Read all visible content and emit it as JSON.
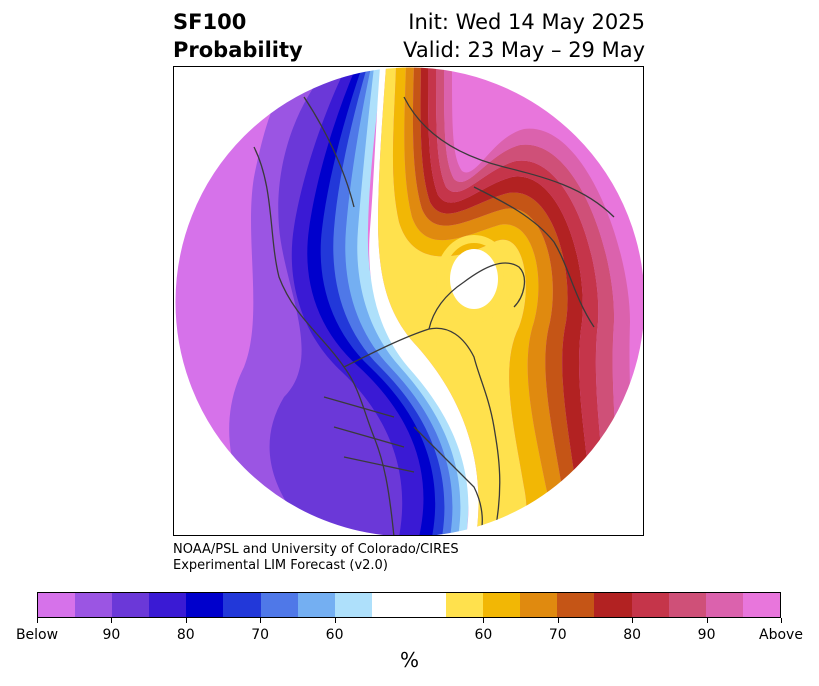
{
  "title": {
    "variable": "SF100",
    "subtitle": "Probability",
    "init": "Init: Wed 14 May 2025",
    "valid": "Valid: 23 May – 29 May"
  },
  "credit": {
    "line1": "NOAA/PSL and University of Colorado/CIRES",
    "line2": "Experimental LIM Forecast (v2.0)"
  },
  "colorbar": {
    "unit": "%",
    "colors": [
      "#d672ea",
      "#9b55e3",
      "#6b38d8",
      "#3a1ad4",
      "#0000cc",
      "#2238d9",
      "#4f78e8",
      "#74aff2",
      "#aee0fb",
      "#ffffff",
      "#ffffff",
      "#ffe14d",
      "#f2b705",
      "#e08a0f",
      "#c55516",
      "#b22222",
      "#c5354a",
      "#cf5078",
      "#db62ad",
      "#e876dc"
    ],
    "ticks": [
      "Below",
      "90",
      "80",
      "70",
      "60",
      "60",
      "70",
      "80",
      "90",
      "Above"
    ]
  },
  "map": {
    "projection": "north-polar stereographic",
    "palette": {
      "ocean_land_bg": "#ffffff",
      "coast": "#3a3a3a"
    }
  }
}
